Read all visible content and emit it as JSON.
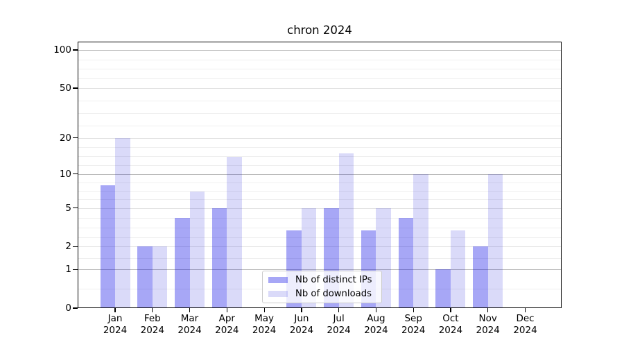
{
  "title": "chron 2024",
  "legend": {
    "items": [
      {
        "label": "Nb of distinct IPs",
        "series_key": "ips"
      },
      {
        "label": "Nb of downloads",
        "series_key": "downloads"
      }
    ]
  },
  "colors": {
    "ips_bar": "#a9a9f6",
    "downloads_bar": "#dbdbf8",
    "ips_fill": "rgba(0,0,230,0.345)",
    "downloads_fill": "rgba(0,0,215,0.145)",
    "grid_major": "#b8b8b8",
    "grid_mid": "#e2e2e2",
    "grid_minor": "#efefef",
    "spine": "#000000",
    "text": "#000000"
  },
  "chart_data": {
    "type": "bar",
    "title": "chron 2024",
    "x_categories": [
      {
        "month": "Jan",
        "year": "2024"
      },
      {
        "month": "Feb",
        "year": "2024"
      },
      {
        "month": "Mar",
        "year": "2024"
      },
      {
        "month": "Apr",
        "year": "2024"
      },
      {
        "month": "May",
        "year": "2024"
      },
      {
        "month": "Jun",
        "year": "2024"
      },
      {
        "month": "Jul",
        "year": "2024"
      },
      {
        "month": "Aug",
        "year": "2024"
      },
      {
        "month": "Sep",
        "year": "2024"
      },
      {
        "month": "Oct",
        "year": "2024"
      },
      {
        "month": "Nov",
        "year": "2024"
      },
      {
        "month": "Dec",
        "year": "2024"
      }
    ],
    "series": [
      {
        "name": "Nb of distinct IPs",
        "values": [
          8,
          2,
          4,
          5,
          0,
          3,
          5,
          3,
          4,
          1,
          2,
          0
        ]
      },
      {
        "name": "Nb of downloads",
        "values": [
          20,
          2,
          7,
          14,
          0,
          5,
          15,
          5,
          10,
          3,
          10,
          0
        ]
      }
    ],
    "xlabel": "",
    "ylabel": "",
    "y_scale": "log1p",
    "y_ticks": [
      0,
      1,
      2,
      5,
      10,
      20,
      50,
      100
    ],
    "y_ticks_emphasized": [
      1,
      10,
      100
    ],
    "ylim": [
      0,
      115
    ],
    "grid": "on",
    "legend_position": "lower center"
  }
}
